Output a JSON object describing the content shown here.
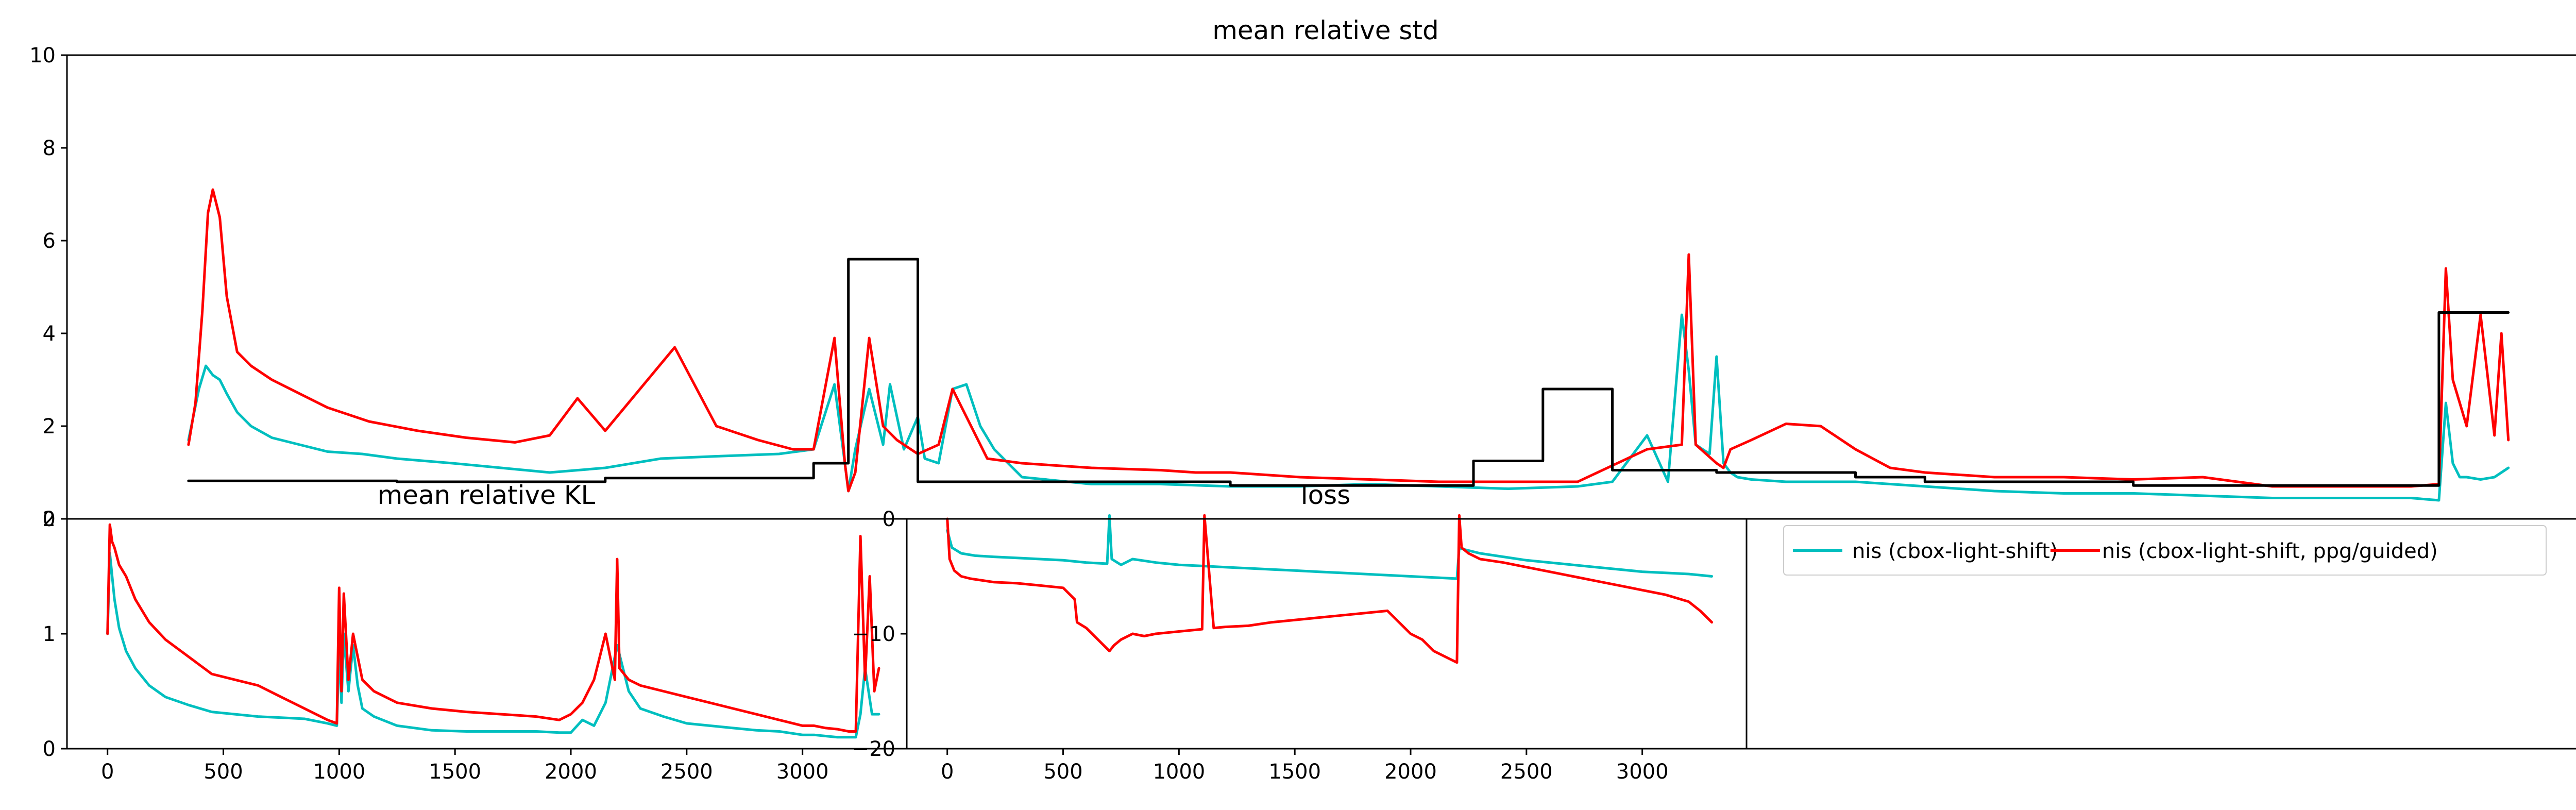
{
  "chart_data": [
    {
      "type": "line",
      "title": "mean relative std",
      "xlabel": "",
      "ylabel": "",
      "ylim": [
        0,
        10
      ],
      "xlim": [
        -175,
        3450
      ],
      "yticks": [
        0,
        2,
        4,
        6,
        8,
        10
      ],
      "grid": false,
      "series": [
        {
          "color": "#00bfbf",
          "x": [
            0,
            15,
            25,
            35,
            45,
            55,
            70,
            90,
            120,
            160,
            200,
            250,
            300,
            380,
            450,
            520,
            600,
            680,
            760,
            850,
            900,
            930,
            945,
            950,
            960,
            980,
            1000,
            1010,
            1030,
            1050,
            1060,
            1080,
            1100,
            1120,
            1140,
            1160,
            1200,
            1300,
            1400,
            1500,
            1600,
            1700,
            1800,
            1900,
            2000,
            2050,
            2100,
            2130,
            2150,
            2160,
            2170,
            2190,
            2200,
            2210,
            2220,
            2230,
            2250,
            2300,
            2400,
            2500,
            2600,
            2700,
            2800,
            2900,
            3000,
            3100,
            3200,
            3240,
            3250,
            3260,
            3270,
            3280,
            3300,
            3320,
            3340
          ],
          "y": [
            1.7,
            2.8,
            3.3,
            3.1,
            3.0,
            2.7,
            2.3,
            2.0,
            1.75,
            1.6,
            1.45,
            1.4,
            1.3,
            1.2,
            1.1,
            1.0,
            1.1,
            1.3,
            1.35,
            1.4,
            1.5,
            2.9,
            1.2,
            0.6,
            1.5,
            2.8,
            1.6,
            2.9,
            1.5,
            2.2,
            1.3,
            1.2,
            2.8,
            2.9,
            2.0,
            1.5,
            0.9,
            0.75,
            0.75,
            0.7,
            0.7,
            0.75,
            0.7,
            0.65,
            0.7,
            0.8,
            1.8,
            0.8,
            4.4,
            3.2,
            1.6,
            1.4,
            3.5,
            1.2,
            1.0,
            0.9,
            0.85,
            0.8,
            0.8,
            0.7,
            0.6,
            0.55,
            0.55,
            0.5,
            0.45,
            0.45,
            0.45,
            0.4,
            2.5,
            1.2,
            0.9,
            0.9,
            0.85,
            0.9,
            1.1
          ]
        },
        {
          "color": "#ff0000",
          "x": [
            0,
            10,
            20,
            28,
            35,
            45,
            55,
            70,
            90,
            120,
            160,
            200,
            260,
            330,
            400,
            470,
            520,
            560,
            600,
            650,
            700,
            760,
            820,
            870,
            900,
            930,
            945,
            950,
            960,
            980,
            1000,
            1020,
            1050,
            1080,
            1100,
            1150,
            1200,
            1300,
            1400,
            1450,
            1500,
            1600,
            1700,
            1800,
            1900,
            2000,
            2100,
            2150,
            2160,
            2170,
            2200,
            2210,
            2220,
            2250,
            2300,
            2350,
            2400,
            2450,
            2500,
            2600,
            2700,
            2800,
            2900,
            3000,
            3100,
            3200,
            3240,
            3250,
            3260,
            3280,
            3300,
            3320,
            3330,
            3340
          ],
          "y": [
            1.6,
            2.5,
            4.5,
            6.6,
            7.1,
            6.5,
            4.8,
            3.6,
            3.3,
            3.0,
            2.7,
            2.4,
            2.1,
            1.9,
            1.75,
            1.65,
            1.8,
            2.6,
            1.9,
            2.8,
            3.7,
            2.0,
            1.7,
            1.5,
            1.5,
            3.9,
            1.2,
            0.6,
            1.0,
            3.9,
            2.0,
            1.7,
            1.4,
            1.6,
            2.8,
            1.3,
            1.2,
            1.1,
            1.05,
            1.0,
            1.0,
            0.9,
            0.85,
            0.8,
            0.8,
            0.8,
            1.5,
            1.6,
            5.7,
            1.6,
            1.2,
            1.1,
            1.5,
            1.7,
            2.05,
            2.0,
            1.5,
            1.1,
            1.0,
            0.9,
            0.9,
            0.85,
            0.9,
            0.7,
            0.7,
            0.7,
            0.75,
            5.4,
            3.0,
            2.0,
            4.4,
            1.8,
            4.0,
            1.7
          ]
        },
        {
          "color": "#000000",
          "x": [
            0,
            300,
            300,
            600,
            600,
            900,
            900,
            950,
            950,
            1050,
            1050,
            1500,
            1500,
            1850,
            1850,
            1950,
            1950,
            2050,
            2050,
            2150,
            2150,
            2200,
            2200,
            2400,
            2400,
            2500,
            2500,
            2800,
            2800,
            3240,
            3240,
            3340
          ],
          "y": [
            0.82,
            0.82,
            0.8,
            0.8,
            0.88,
            0.88,
            1.2,
            1.2,
            5.6,
            5.6,
            0.8,
            0.8,
            0.72,
            0.72,
            1.25,
            1.25,
            2.8,
            2.8,
            1.05,
            1.05,
            1.05,
            1.05,
            1.0,
            1.0,
            0.9,
            0.9,
            0.8,
            0.8,
            0.72,
            0.72,
            4.45,
            4.45
          ]
        }
      ]
    },
    {
      "type": "line",
      "title": "mean relative KL",
      "xlabel": "",
      "ylabel": "",
      "ylim": [
        0,
        2
      ],
      "xlim": [
        -175,
        3450
      ],
      "xticks": [
        0,
        500,
        1000,
        1500,
        2000,
        2500,
        3000
      ],
      "yticks": [
        0,
        1,
        2
      ],
      "grid": false,
      "series": [
        {
          "color": "#00bfbf",
          "x": [
            0,
            10,
            20,
            30,
            50,
            80,
            120,
            180,
            250,
            350,
            450,
            550,
            650,
            750,
            850,
            950,
            990,
            1000,
            1010,
            1020,
            1040,
            1060,
            1080,
            1100,
            1150,
            1250,
            1400,
            1550,
            1700,
            1850,
            1950,
            2000,
            2050,
            2100,
            2150,
            2200,
            2250,
            2300,
            2400,
            2500,
            2600,
            2700,
            2800,
            2900,
            3000,
            3050,
            3100,
            3150,
            3200,
            3230,
            3250,
            3270,
            3300,
            3320,
            3330
          ],
          "y": [
            1.0,
            1.7,
            1.5,
            1.3,
            1.05,
            0.85,
            0.7,
            0.55,
            0.45,
            0.38,
            0.32,
            0.3,
            0.28,
            0.27,
            0.26,
            0.22,
            0.2,
            0.9,
            0.4,
            1.0,
            0.5,
            0.9,
            0.55,
            0.35,
            0.28,
            0.2,
            0.16,
            0.15,
            0.15,
            0.15,
            0.14,
            0.14,
            0.25,
            0.2,
            0.4,
            0.9,
            0.5,
            0.35,
            0.28,
            0.22,
            0.2,
            0.18,
            0.16,
            0.15,
            0.12,
            0.12,
            0.11,
            0.1,
            0.1,
            0.1,
            0.3,
            0.7,
            0.3,
            0.3,
            0.3
          ]
        },
        {
          "color": "#ff0000",
          "x": [
            0,
            10,
            20,
            30,
            50,
            80,
            120,
            180,
            250,
            350,
            450,
            550,
            650,
            700,
            750,
            850,
            950,
            990,
            1000,
            1010,
            1020,
            1040,
            1060,
            1080,
            1100,
            1150,
            1250,
            1400,
            1550,
            1700,
            1850,
            1950,
            2000,
            2050,
            2100,
            2150,
            2190,
            2200,
            2210,
            2250,
            2300,
            2400,
            2500,
            2600,
            2700,
            2800,
            2900,
            3000,
            3050,
            3100,
            3150,
            3200,
            3230,
            3250,
            3270,
            3290,
            3310,
            3330
          ],
          "y": [
            1.0,
            1.95,
            1.8,
            1.75,
            1.6,
            1.5,
            1.3,
            1.1,
            0.95,
            0.8,
            0.65,
            0.6,
            0.55,
            0.5,
            0.45,
            0.35,
            0.25,
            0.22,
            1.4,
            0.5,
            1.35,
            0.6,
            1.0,
            0.8,
            0.6,
            0.5,
            0.4,
            0.35,
            0.32,
            0.3,
            0.28,
            0.25,
            0.3,
            0.4,
            0.6,
            1.0,
            0.6,
            1.65,
            0.7,
            0.6,
            0.55,
            0.5,
            0.45,
            0.4,
            0.35,
            0.3,
            0.25,
            0.2,
            0.2,
            0.18,
            0.17,
            0.15,
            0.15,
            1.85,
            0.6,
            1.5,
            0.5,
            0.7
          ]
        }
      ]
    },
    {
      "type": "line",
      "title": "loss",
      "xlabel": "",
      "ylabel": "",
      "ylim": [
        -20,
        0
      ],
      "xlim": [
        -175,
        3450
      ],
      "xticks": [
        0,
        500,
        1000,
        1500,
        2000,
        2500,
        3000
      ],
      "yticks": [
        0,
        -10,
        -20
      ],
      "grid": false,
      "series": [
        {
          "name": "nis (cbox-light-shift)",
          "color": "#00bfbf",
          "x": [
            0,
            20,
            60,
            120,
            200,
            300,
            400,
            500,
            600,
            690,
            700,
            710,
            750,
            800,
            900,
            1000,
            1100,
            1200,
            1300,
            1400,
            1500,
            1600,
            1700,
            1800,
            1900,
            2000,
            2100,
            2200,
            2210,
            2220,
            2300,
            2400,
            2500,
            2600,
            2700,
            2800,
            2900,
            3000,
            3100,
            3200,
            3300
          ],
          "y": [
            -1,
            -2.5,
            -3.0,
            -3.2,
            -3.3,
            -3.4,
            -3.5,
            -3.6,
            -3.8,
            -3.9,
            0.3,
            -3.5,
            -4.0,
            -3.5,
            -3.8,
            -4.0,
            -4.1,
            -4.2,
            -4.3,
            -4.4,
            -4.5,
            -4.6,
            -4.7,
            -4.8,
            -4.9,
            -5.0,
            -5.1,
            -5.2,
            -2.5,
            -2.6,
            -3.0,
            -3.3,
            -3.6,
            -3.8,
            -4.0,
            -4.2,
            -4.4,
            -4.6,
            -4.7,
            -4.8,
            -5.0
          ]
        },
        {
          "name": "nis (cbox-light-shift, ppg/guided)",
          "color": "#ff0000",
          "x": [
            0,
            10,
            30,
            60,
            100,
            200,
            300,
            400,
            500,
            550,
            560,
            600,
            650,
            700,
            720,
            750,
            800,
            850,
            900,
            1000,
            1100,
            1110,
            1150,
            1200,
            1300,
            1400,
            1500,
            1600,
            1700,
            1800,
            1900,
            2000,
            2050,
            2100,
            2150,
            2200,
            2210,
            2220,
            2250,
            2300,
            2400,
            2500,
            2600,
            2700,
            2800,
            2900,
            3000,
            3100,
            3200,
            3250,
            3300
          ],
          "y": [
            0,
            -3.5,
            -4.5,
            -5.0,
            -5.2,
            -5.5,
            -5.6,
            -5.8,
            -6.0,
            -7.0,
            -9.0,
            -9.5,
            -10.5,
            -11.5,
            -11.0,
            -10.5,
            -10.0,
            -10.2,
            -10.0,
            -9.8,
            -9.6,
            0.3,
            -9.5,
            -9.4,
            -9.3,
            -9.0,
            -8.8,
            -8.6,
            -8.4,
            -8.2,
            -8.0,
            -10.0,
            -10.5,
            -11.5,
            -12.0,
            -12.5,
            0.3,
            -2.5,
            -3.0,
            -3.5,
            -3.8,
            -4.2,
            -4.6,
            -5.0,
            -5.4,
            -5.8,
            -6.2,
            -6.6,
            -7.2,
            -8.0,
            -9.0
          ]
        }
      ]
    }
  ]
}
